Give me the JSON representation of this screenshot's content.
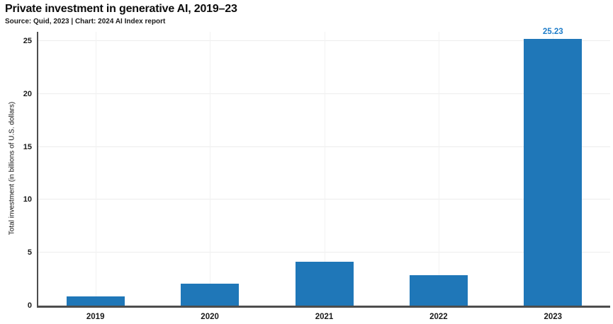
{
  "header": {
    "title": "Private investment in generative AI, 2019–23",
    "source": "Source: Quid, 2023 | Chart: 2024 AI Index report"
  },
  "chart_data": {
    "type": "bar",
    "title": "Private investment in generative AI, 2019–23",
    "source": "Source: Quid, 2023 | Chart: 2024 AI Index report",
    "categories": [
      "2019",
      "2020",
      "2021",
      "2022",
      "2023"
    ],
    "values": [
      0.85,
      2.05,
      4.15,
      2.85,
      25.23
    ],
    "data_labels": [
      "",
      "",
      "",
      "",
      "25.23"
    ],
    "xlabel": "",
    "ylabel": "Total investment (in billions of U.S. dollars)",
    "ylim": [
      0,
      25
    ],
    "yticks": [
      0,
      5,
      10,
      15,
      20,
      25
    ],
    "grid": "light horizontal gridlines at y ticks and light vertical gridlines at each category center",
    "legend": "none",
    "colors": {
      "bar": "#1f77b8",
      "data_label": "#1d7cc9",
      "axis": "#4d4d4d",
      "grid": "#ededed",
      "tick_text": "#1a1a1a"
    }
  }
}
